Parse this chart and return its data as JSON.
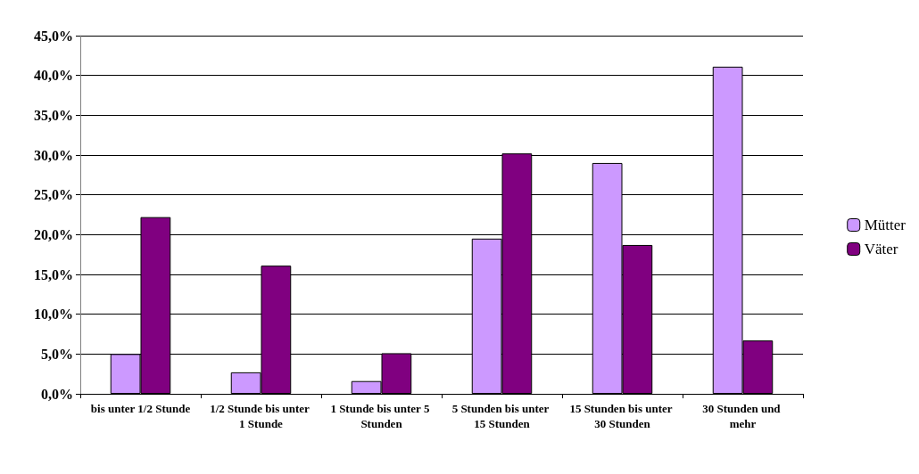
{
  "chart_data": {
    "type": "bar",
    "categories": [
      "bis unter 1/2 Stunde",
      "1/2 Stunde bis unter 1 Stunde",
      "1 Stunde bis unter 5 Stunden",
      "5 Stunden bis unter 15 Stunden",
      "15 Stunden bis unter 30 Stunden",
      "30 Stunden und mehr"
    ],
    "series": [
      {
        "name": "Mütter",
        "color": "#cc99ff",
        "values": [
          5.0,
          2.7,
          1.6,
          19.5,
          29.0,
          41.1
        ]
      },
      {
        "name": "Väter",
        "color": "#800080",
        "values": [
          22.2,
          16.1,
          5.1,
          30.2,
          18.7,
          6.7
        ]
      }
    ],
    "ylim": [
      0,
      45
    ],
    "yticks": [
      {
        "value": 0,
        "label": "0,0%"
      },
      {
        "value": 5,
        "label": "5,0%"
      },
      {
        "value": 10,
        "label": "10,0%"
      },
      {
        "value": 15,
        "label": "15,0%"
      },
      {
        "value": 20,
        "label": "20,0%"
      },
      {
        "value": 25,
        "label": "25,0%"
      },
      {
        "value": 30,
        "label": "30,0%"
      },
      {
        "value": 35,
        "label": "35,0%"
      },
      {
        "value": 40,
        "label": "40,0%"
      },
      {
        "value": 45,
        "label": "45,0%"
      }
    ],
    "grid": "y",
    "legend": "right"
  }
}
